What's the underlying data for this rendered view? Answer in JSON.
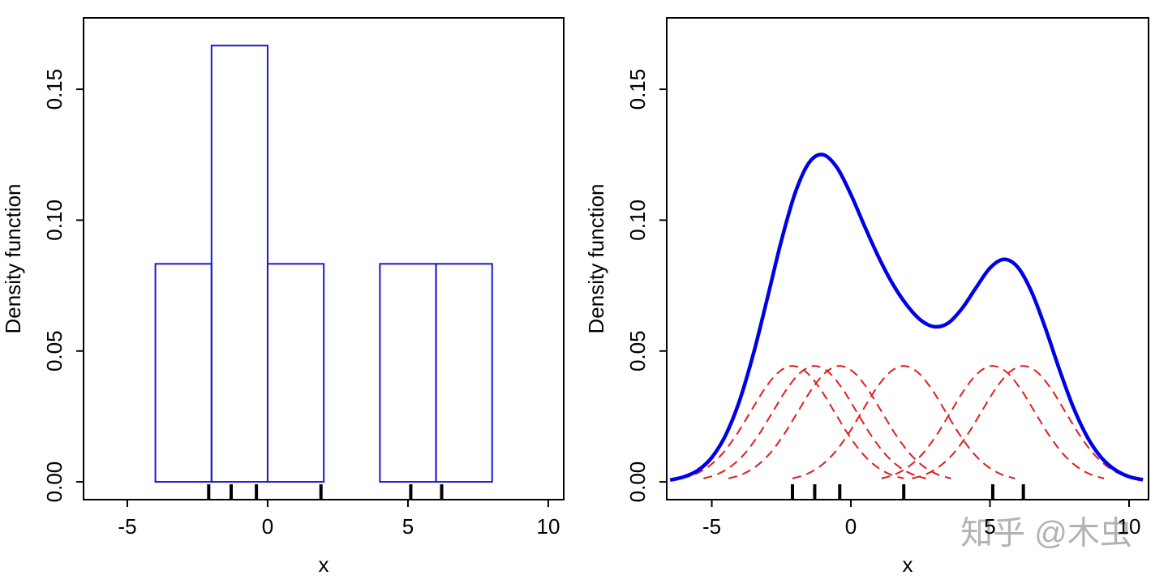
{
  "chart_data": [
    {
      "type": "histogram",
      "xlabel": "x",
      "ylabel": "Density function",
      "bins": [
        -4,
        -2,
        0,
        2,
        4,
        6,
        8
      ],
      "values": [
        0.0833,
        0.1667,
        0.0833,
        0,
        0.0833,
        0.0833
      ],
      "color": "#1a1acd",
      "rug": [
        -2.1,
        -1.3,
        -0.4,
        1.9,
        5.1,
        6.2
      ],
      "xlim": [
        -6.56,
        10.55
      ],
      "ylim": [
        -0.0068,
        0.1773
      ],
      "xticks": [
        -5,
        0,
        5,
        10
      ],
      "yticks": [
        {
          "value": 0,
          "label": "0.00"
        },
        {
          "value": 0.05,
          "label": "0.05"
        },
        {
          "value": 0.1,
          "label": "0.10"
        },
        {
          "value": 0.15,
          "label": "0.15"
        }
      ]
    },
    {
      "type": "kde",
      "xlabel": "x",
      "ylabel": "Density function",
      "annotation": "知乎 @木虫",
      "rug": [
        -2.1,
        -1.3,
        -0.4,
        1.9,
        5.1,
        6.2
      ],
      "xlim": [
        -6.62,
        10.7
      ],
      "ylim": [
        -0.0068,
        0.1773
      ],
      "xticks": [
        -5,
        0,
        5,
        10
      ],
      "yticks": [
        {
          "value": 0,
          "label": "0.00"
        },
        {
          "value": 0.05,
          "label": "0.05"
        },
        {
          "value": 0.1,
          "label": "0.10"
        },
        {
          "value": 0.15,
          "label": "0.15"
        }
      ],
      "series": [
        {
          "color": "#0000e6",
          "linestyle": "solid",
          "x": [
            -6.5,
            -6,
            -5.5,
            -5,
            -4.5,
            -4,
            -3.5,
            -3,
            -2.5,
            -2,
            -1.5,
            -1,
            -0.5,
            0,
            0.5,
            1,
            1.5,
            2,
            2.5,
            3,
            3.5,
            4,
            4.5,
            5,
            5.5,
            6,
            6.5,
            7,
            7.5,
            8,
            8.5,
            9,
            9.5,
            10,
            10.5
          ],
          "values": [
            0.0007,
            0.0019,
            0.0044,
            0.0093,
            0.0179,
            0.0311,
            0.0491,
            0.0703,
            0.0921,
            0.1105,
            0.122,
            0.125,
            0.1201,
            0.1098,
            0.0975,
            0.0858,
            0.0757,
            0.0677,
            0.0619,
            0.0593,
            0.0607,
            0.0663,
            0.0742,
            0.0817,
            0.085,
            0.082,
            0.0725,
            0.0585,
            0.0428,
            0.0284,
            0.0171,
            0.0093,
            0.0046,
            0.002,
            0.0008
          ]
        },
        {
          "color": "#e01e1e",
          "linestyle": "dashed",
          "x": [
            -6.1,
            -5.6,
            -5.1,
            -4.6,
            -4.1,
            -3.6,
            -3.1,
            -2.6,
            -2.1,
            -1.6,
            -1.1,
            -0.6,
            -0.1,
            0.4,
            0.9,
            1.4,
            1.9
          ],
          "values": [
            0.0013,
            0.0029,
            0.006,
            0.011,
            0.0182,
            0.0269,
            0.0355,
            0.0419,
            0.0443,
            0.0419,
            0.0355,
            0.0269,
            0.0182,
            0.011,
            0.006,
            0.0029,
            0.0013
          ]
        },
        {
          "color": "#e01e1e",
          "linestyle": "dashed",
          "x": [
            -5.3,
            -4.8,
            -4.3,
            -3.8,
            -3.3,
            -2.8,
            -2.3,
            -1.8,
            -1.3,
            -0.8,
            -0.3,
            0.2,
            0.7,
            1.2,
            1.7,
            2.2,
            2.7
          ],
          "values": [
            0.0013,
            0.0029,
            0.006,
            0.011,
            0.0182,
            0.0269,
            0.0355,
            0.0419,
            0.0443,
            0.0419,
            0.0355,
            0.0269,
            0.0182,
            0.011,
            0.006,
            0.0029,
            0.0013
          ]
        },
        {
          "color": "#e01e1e",
          "linestyle": "dashed",
          "x": [
            -4.4,
            -3.9,
            -3.4,
            -2.9,
            -2.4,
            -1.9,
            -1.4,
            -0.9,
            -0.4,
            0.1,
            0.6,
            1.1,
            1.6,
            2.1,
            2.6,
            3.1,
            3.6
          ],
          "values": [
            0.0013,
            0.0029,
            0.006,
            0.011,
            0.0182,
            0.0269,
            0.0355,
            0.0419,
            0.0443,
            0.0419,
            0.0355,
            0.0269,
            0.0182,
            0.011,
            0.006,
            0.0029,
            0.0013
          ]
        },
        {
          "color": "#e01e1e",
          "linestyle": "dashed",
          "x": [
            -2.1,
            -1.6,
            -1.1,
            -0.6,
            -0.1,
            0.4,
            0.9,
            1.4,
            1.9,
            2.4,
            2.9,
            3.4,
            3.9,
            4.4,
            4.9,
            5.4,
            5.9
          ],
          "values": [
            0.0013,
            0.0029,
            0.006,
            0.011,
            0.0182,
            0.0269,
            0.0355,
            0.0419,
            0.0443,
            0.0419,
            0.0355,
            0.0269,
            0.0182,
            0.011,
            0.006,
            0.0029,
            0.0013
          ]
        },
        {
          "color": "#e01e1e",
          "linestyle": "dashed",
          "x": [
            1.1,
            1.6,
            2.1,
            2.6,
            3.1,
            3.6,
            4.1,
            4.6,
            5.1,
            5.6,
            6.1,
            6.6,
            7.1,
            7.6,
            8.1,
            8.6,
            9.1
          ],
          "values": [
            0.0013,
            0.0029,
            0.006,
            0.011,
            0.0182,
            0.0269,
            0.0355,
            0.0419,
            0.0443,
            0.0419,
            0.0355,
            0.0269,
            0.0182,
            0.011,
            0.006,
            0.0029,
            0.0013
          ]
        },
        {
          "color": "#e01e1e",
          "linestyle": "dashed",
          "x": [
            2.2,
            2.7,
            3.2,
            3.7,
            4.2,
            4.7,
            5.2,
            5.7,
            6.2,
            6.7,
            7.2,
            7.7,
            8.2,
            8.7,
            9.2,
            9.7,
            10.2
          ],
          "values": [
            0.0013,
            0.0029,
            0.006,
            0.011,
            0.0182,
            0.0269,
            0.0355,
            0.0419,
            0.0443,
            0.0419,
            0.0355,
            0.0269,
            0.0182,
            0.011,
            0.006,
            0.0029,
            0.0013
          ]
        }
      ]
    }
  ]
}
